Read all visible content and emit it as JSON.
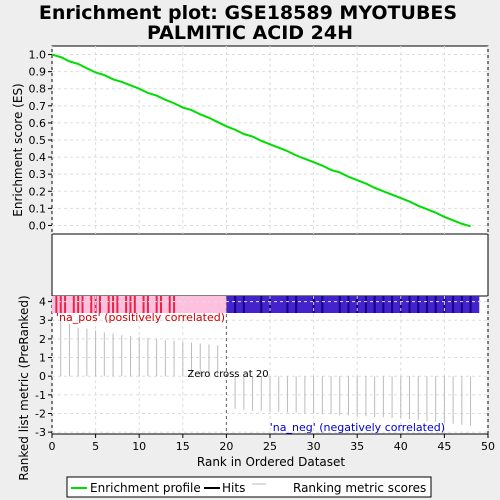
{
  "title_lines": [
    "Enrichment plot: GSE18589 MYOTUBES",
    "PALMITIC ACID 24H"
  ],
  "annotations": {
    "pos": "'na_pos' (positively correlated)",
    "neg": "'na_neg' (negatively correlated)",
    "zero": "Zero cross at 20"
  },
  "legend": {
    "enrichment": "Enrichment profile",
    "hits": "Hits",
    "ranking": "Ranking metric scores"
  },
  "colors": {
    "es_line": "#00dd00",
    "hit_line": "#000000",
    "metric_line": "#bbbbbb",
    "pos_region": "#ffc0e0",
    "neg_region": "#4422cc",
    "pos_text": "#cc0000",
    "neg_text": "#0000cc"
  },
  "chart_data": [
    {
      "type": "line",
      "name": "enrichment-score",
      "ylabel": "Enrichment score (ES)",
      "xlim": [
        0,
        50
      ],
      "ylim": [
        -0.05,
        1.05
      ],
      "yticks": [
        0.0,
        0.1,
        0.2,
        0.3,
        0.4,
        0.5,
        0.6,
        0.7,
        0.8,
        0.9,
        1.0
      ],
      "ytick_labels": [
        "0.0",
        "0.1",
        "0.2",
        "0.3",
        "0.4",
        "0.5",
        "0.6",
        "0.7",
        "0.8",
        "0.9",
        "1.0"
      ],
      "grid": true,
      "x": [
        0,
        1,
        2,
        3,
        4,
        5,
        6,
        7,
        8,
        9,
        10,
        11,
        12,
        13,
        14,
        15,
        16,
        17,
        18,
        19,
        20,
        21,
        22,
        23,
        24,
        25,
        26,
        27,
        28,
        29,
        30,
        31,
        32,
        33,
        34,
        35,
        36,
        37,
        38,
        39,
        40,
        41,
        42,
        43,
        44,
        45,
        46,
        47,
        48
      ],
      "y": [
        1.0,
        0.985,
        0.96,
        0.945,
        0.92,
        0.895,
        0.88,
        0.855,
        0.84,
        0.82,
        0.8,
        0.775,
        0.76,
        0.735,
        0.715,
        0.69,
        0.675,
        0.65,
        0.63,
        0.605,
        0.58,
        0.56,
        0.535,
        0.52,
        0.495,
        0.475,
        0.455,
        0.435,
        0.41,
        0.39,
        0.37,
        0.35,
        0.325,
        0.31,
        0.285,
        0.265,
        0.245,
        0.22,
        0.2,
        0.18,
        0.16,
        0.14,
        0.115,
        0.095,
        0.075,
        0.05,
        0.03,
        0.01,
        -0.005
      ]
    },
    {
      "type": "bar",
      "name": "hits",
      "hit_ranks": [
        0.5,
        1,
        1.5,
        2.5,
        3,
        3.5,
        4.5,
        5,
        5.5,
        6.5,
        7,
        7.5,
        8.5,
        9,
        9.5,
        10.5,
        11,
        12,
        12.5,
        13.5,
        14,
        21,
        22,
        24,
        25,
        27,
        28,
        30,
        31,
        33,
        34,
        35,
        36,
        37,
        38,
        39,
        40,
        41,
        42,
        43,
        44,
        45,
        46,
        47,
        48
      ]
    },
    {
      "type": "bar",
      "name": "ranked-metric",
      "xlabel": "Rank in Ordered Dataset",
      "ylabel": "Ranked list metric (PreRanked)",
      "xlim": [
        0,
        50
      ],
      "ylim": [
        -3.1,
        4.3
      ],
      "xticks": [
        0,
        5,
        10,
        15,
        20,
        25,
        30,
        35,
        40,
        45,
        50
      ],
      "xtick_labels": [
        "0",
        "5",
        "10",
        "15",
        "20",
        "25",
        "30",
        "35",
        "40",
        "45",
        "50"
      ],
      "yticks": [
        -3,
        -2,
        -1,
        0,
        1,
        2,
        3,
        4
      ],
      "ytick_labels": [
        "-3",
        "-2",
        "-1",
        "0",
        "1",
        "2",
        "3",
        "4"
      ],
      "grid": true,
      "zero_cross": 20,
      "x": [
        1,
        2,
        3,
        4,
        5,
        6,
        7,
        8,
        9,
        10,
        11,
        12,
        13,
        14,
        15,
        16,
        17,
        18,
        19,
        21,
        22,
        23,
        24,
        25,
        26,
        27,
        28,
        29,
        30,
        31,
        32,
        33,
        34,
        35,
        36,
        37,
        38,
        39,
        40,
        41,
        42,
        43,
        44,
        45,
        46,
        47,
        48
      ],
      "values": [
        3.1,
        2.8,
        2.6,
        2.55,
        2.45,
        2.35,
        2.3,
        2.2,
        2.15,
        2.1,
        2.05,
        2.0,
        1.95,
        1.9,
        1.85,
        1.8,
        1.75,
        1.7,
        1.65,
        -1.75,
        -1.8,
        -1.85,
        -1.85,
        -1.9,
        -1.9,
        -1.95,
        -1.95,
        -2.0,
        -2.0,
        -2.05,
        -2.05,
        -2.1,
        -2.1,
        -2.15,
        -2.15,
        -2.2,
        -2.2,
        -2.25,
        -2.25,
        -2.3,
        -2.35,
        -2.4,
        -2.45,
        -2.5,
        -2.55,
        -2.6,
        -2.65
      ]
    }
  ]
}
